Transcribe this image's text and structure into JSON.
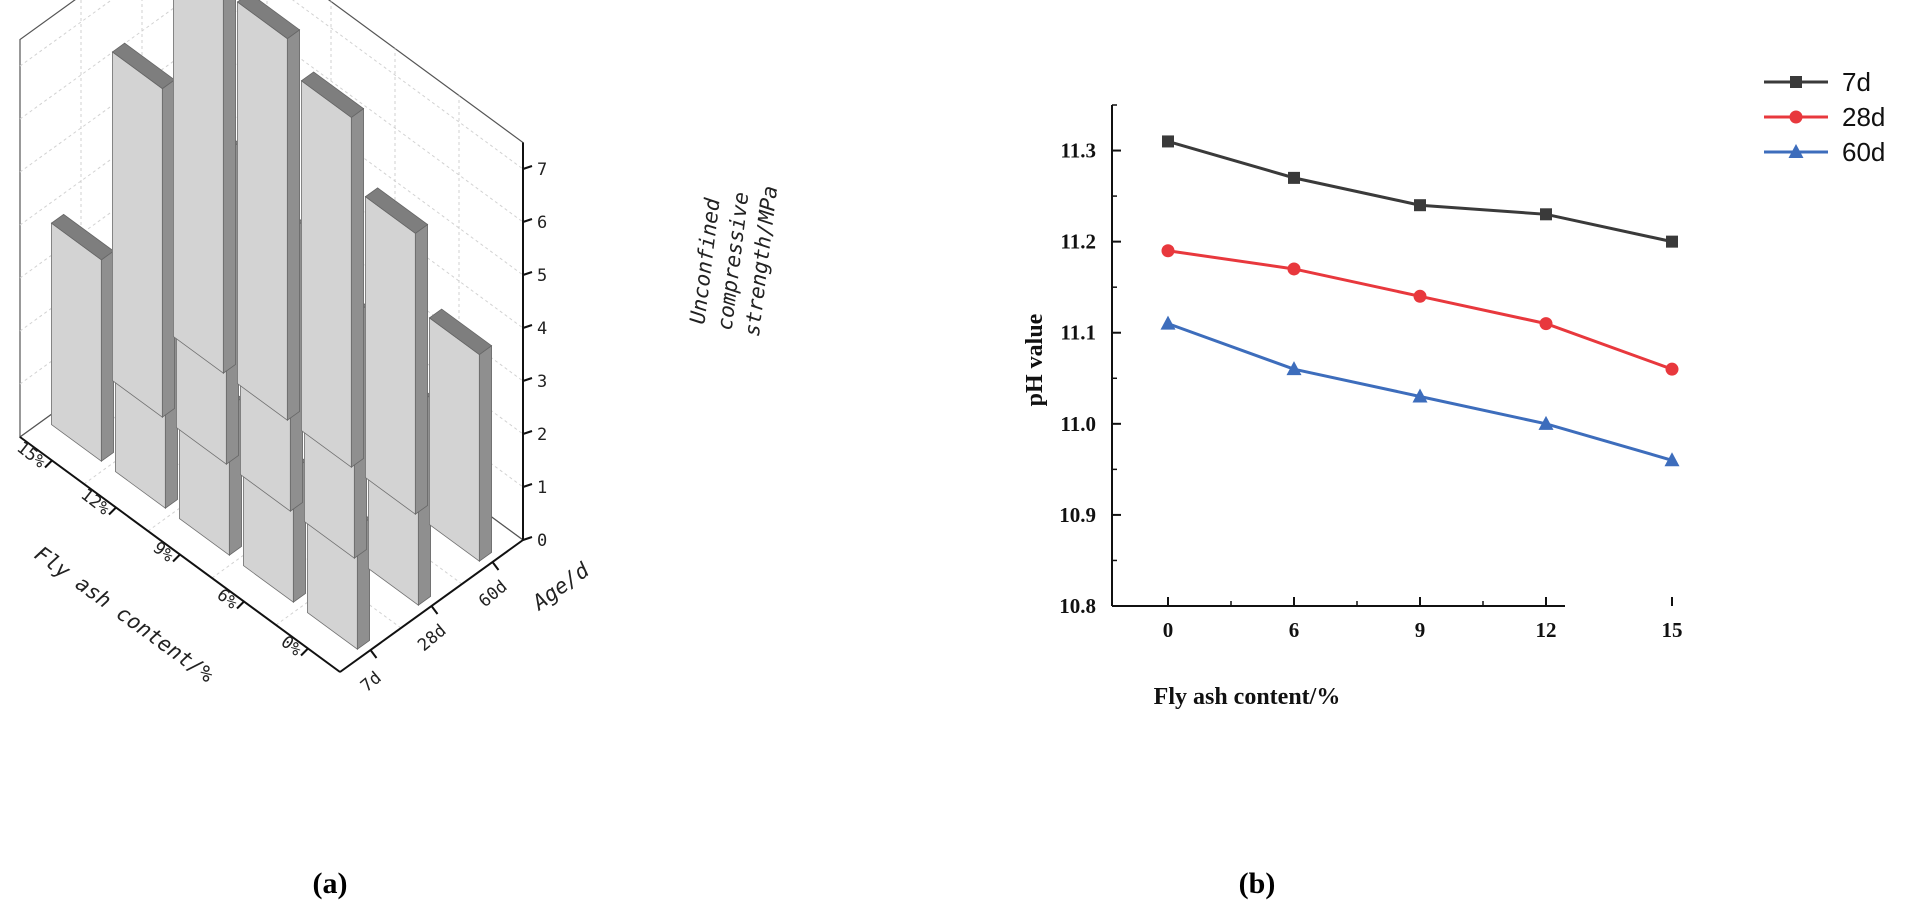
{
  "chart_data": [
    {
      "type": "bar3d",
      "panel": "(a)",
      "x_axis": {
        "label": "Fly ash content/%",
        "ticks": [
          "0%",
          "6%",
          "9%",
          "12%",
          "15%"
        ]
      },
      "y_axis": {
        "label": "Age/d",
        "ticks": [
          "7d",
          "28d",
          "60d"
        ]
      },
      "z_axis": {
        "label_lines": [
          "Unconfined",
          "compressive",
          "strength/MPa"
        ],
        "ticks": [
          "0",
          "1",
          "2",
          "3",
          "4",
          "5",
          "6",
          "7"
        ],
        "zlim": [
          0,
          7.5
        ]
      },
      "series": [
        {
          "name": "7d",
          "values": [
            2.3,
            2.5,
            2.8,
            3.3,
            3.8
          ]
        },
        {
          "name": "28d",
          "values": [
            3.8,
            4.6,
            5.3,
            5.9,
            6.2
          ]
        },
        {
          "name": "60d",
          "values": [
            3.9,
            5.3,
            6.6,
            7.2,
            7.6
          ]
        }
      ]
    },
    {
      "type": "line",
      "panel": "(b)",
      "x": [
        0,
        6,
        9,
        12,
        15
      ],
      "x_tick_labels": [
        "0",
        "6",
        "9",
        "12",
        "15"
      ],
      "xlabel": "Fly ash content/%",
      "ylabel": "pH value",
      "ylim": [
        10.8,
        11.35
      ],
      "y_ticks": [
        "10.8",
        "10.9",
        "11.0",
        "11.1",
        "11.2",
        "11.3"
      ],
      "legend_position": "top-right",
      "series": [
        {
          "name": "7d",
          "color": "#3a3a3a",
          "marker": "square",
          "values": [
            11.31,
            11.27,
            11.24,
            11.23,
            11.2
          ]
        },
        {
          "name": "28d",
          "color": "#e8383d",
          "marker": "circle",
          "values": [
            11.19,
            11.17,
            11.14,
            11.11,
            11.06
          ]
        },
        {
          "name": "60d",
          "color": "#3d6dbc",
          "marker": "triangle",
          "values": [
            11.11,
            11.06,
            11.03,
            11.0,
            10.96
          ]
        }
      ]
    }
  ]
}
